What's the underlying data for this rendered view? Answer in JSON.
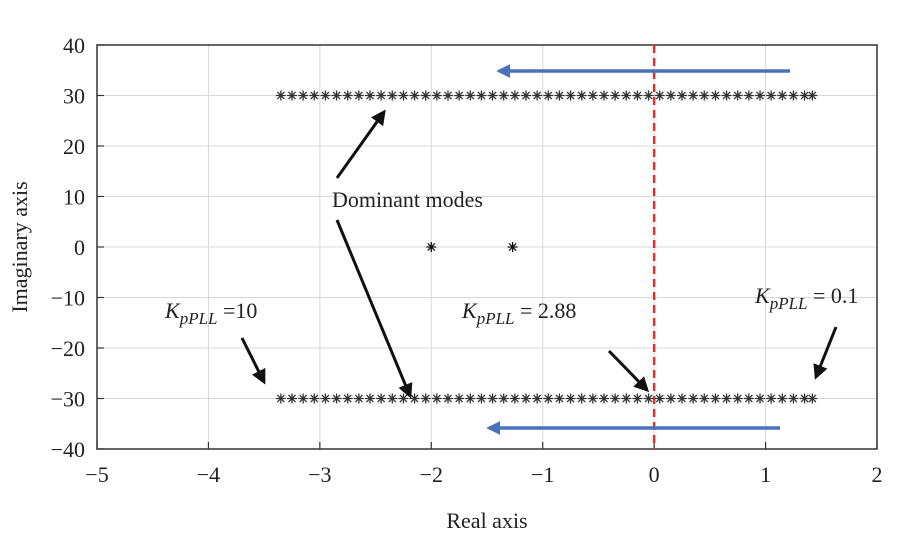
{
  "chart_data": {
    "type": "scatter",
    "xlabel": "Real axis",
    "ylabel": "Imaginary axis",
    "xlim": [
      -5,
      2
    ],
    "ylim": [
      -40,
      40
    ],
    "xticks": [
      {
        "value": -5,
        "label": "−5"
      },
      {
        "value": -4,
        "label": "−4"
      },
      {
        "value": -3,
        "label": "−3"
      },
      {
        "value": -2,
        "label": "−2"
      },
      {
        "value": -1,
        "label": "−1"
      },
      0,
      1,
      2
    ],
    "yticks": [
      {
        "value": -40,
        "label": "−40"
      },
      {
        "value": -30,
        "label": "−30"
      },
      {
        "value": -20,
        "label": "−20"
      },
      {
        "value": -10,
        "label": "−10"
      },
      0,
      10,
      20,
      30,
      40
    ],
    "grid": true,
    "vline": {
      "x": 0,
      "color": "#e03030"
    },
    "series": [
      {
        "color": "#333333",
        "x": [
          -3.35,
          -3.25,
          -3.15,
          -3.05,
          -2.95,
          -2.85,
          -2.75,
          -2.65,
          -2.55,
          -2.45,
          -2.35,
          -2.25,
          -2.15,
          -2.05,
          -1.95,
          -1.85,
          -1.75,
          -1.65,
          -1.55,
          -1.45,
          -1.35,
          -1.25,
          -1.15,
          -1.05,
          -0.95,
          -0.85,
          -0.75,
          -0.65,
          -0.55,
          -0.45,
          -0.35,
          -0.25,
          -0.15,
          -0.05,
          0.05,
          0.15,
          0.25,
          0.35,
          0.45,
          0.55,
          0.65,
          0.75,
          0.85,
          0.95,
          1.05,
          1.15,
          1.25,
          1.35,
          1.42
        ],
        "y": [
          30,
          30,
          30,
          30,
          30,
          30,
          30,
          30,
          30,
          30,
          30,
          30,
          30,
          30,
          30,
          30,
          30,
          30,
          30,
          30,
          30,
          30,
          30,
          30,
          30,
          30,
          30,
          30,
          30,
          30,
          30,
          30,
          30,
          30,
          30,
          30,
          30,
          30,
          30,
          30,
          30,
          30,
          30,
          30,
          30,
          30,
          30,
          30,
          30
        ]
      },
      {
        "color": "#333333",
        "x": [
          -3.35,
          -3.25,
          -3.15,
          -3.05,
          -2.95,
          -2.85,
          -2.75,
          -2.65,
          -2.55,
          -2.45,
          -2.35,
          -2.25,
          -2.15,
          -2.05,
          -1.95,
          -1.85,
          -1.75,
          -1.65,
          -1.55,
          -1.45,
          -1.35,
          -1.25,
          -1.15,
          -1.05,
          -0.95,
          -0.85,
          -0.75,
          -0.65,
          -0.55,
          -0.45,
          -0.35,
          -0.25,
          -0.15,
          -0.05,
          0.05,
          0.15,
          0.25,
          0.35,
          0.45,
          0.55,
          0.65,
          0.75,
          0.85,
          0.95,
          1.05,
          1.15,
          1.25,
          1.35,
          1.42
        ],
        "y": [
          -30,
          -30,
          -30,
          -30,
          -30,
          -30,
          -30,
          -30,
          -30,
          -30,
          -30,
          -30,
          -30,
          -30,
          -30,
          -30,
          -30,
          -30,
          -30,
          -30,
          -30,
          -30,
          -30,
          -30,
          -30,
          -30,
          -30,
          -30,
          -30,
          -30,
          -30,
          -30,
          -30,
          -30,
          -30,
          -30,
          -30,
          -30,
          -30,
          -30,
          -30,
          -30,
          -30,
          -30,
          -30,
          -30,
          -30,
          -30,
          -30
        ]
      },
      {
        "color": "#111111",
        "x": [
          -2,
          -1.27
        ],
        "y": [
          0,
          0
        ]
      }
    ],
    "annotations": [
      {
        "text": "Dominant modes"
      },
      {
        "symbol": "K",
        "subscript": "pPLL",
        "text": " =10"
      },
      {
        "symbol": "K",
        "subscript": "pPLL",
        "text": " = 2.88"
      },
      {
        "symbol": "K",
        "subscript": "pPLL",
        "text": " = 0.1"
      }
    ]
  }
}
